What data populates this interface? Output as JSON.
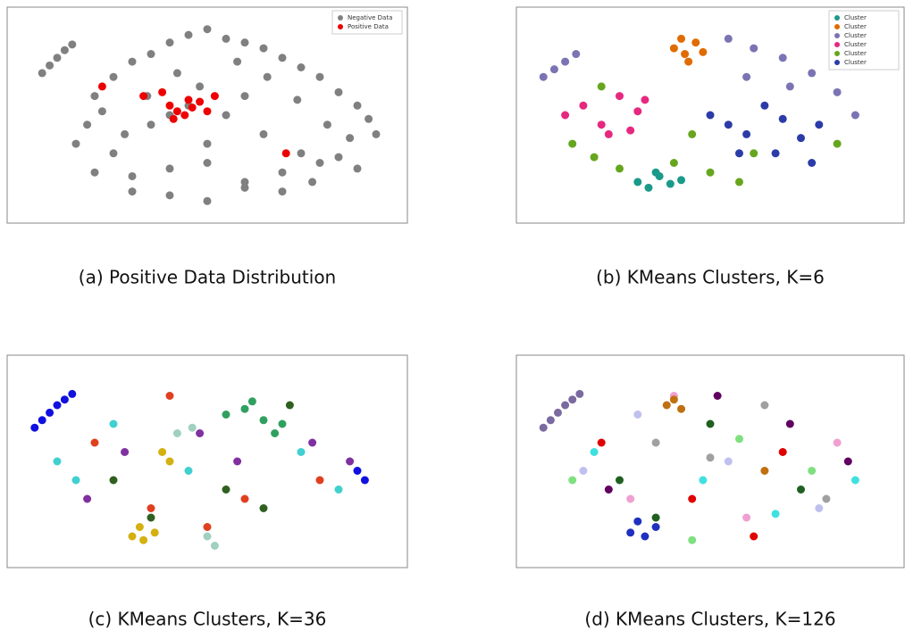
{
  "chart_data": [
    {
      "type": "scatter",
      "title": "(a) Positive Data Distribution",
      "xlim": [
        0,
        100
      ],
      "ylim": [
        0,
        100
      ],
      "legend": "upper right",
      "series": [
        {
          "name": "Negative Data",
          "color": "#808080",
          "x": [
            6,
            8,
            10,
            12,
            14,
            20,
            25,
            30,
            35,
            40,
            45,
            50,
            55,
            60,
            65,
            70,
            75,
            80,
            85,
            90,
            93,
            18,
            22,
            28,
            34,
            42,
            48,
            58,
            66,
            74,
            82,
            88,
            15,
            25,
            35,
            45,
            55,
            65,
            75,
            85,
            95,
            20,
            30,
            40,
            50,
            60,
            70,
            80,
            90,
            30,
            40,
            50,
            60,
            70,
            78,
            40,
            50,
            60
          ],
          "y": [
            72,
            76,
            80,
            84,
            87,
            60,
            70,
            78,
            82,
            88,
            92,
            95,
            90,
            88,
            85,
            80,
            75,
            70,
            62,
            55,
            48,
            45,
            52,
            40,
            60,
            72,
            65,
            78,
            70,
            58,
            45,
            38,
            35,
            30,
            45,
            55,
            50,
            40,
            30,
            28,
            40,
            20,
            18,
            22,
            25,
            15,
            20,
            25,
            22,
            10,
            8,
            5,
            12,
            10,
            15,
            50,
            35,
            60
          ]
        },
        {
          "name": "Positive Data",
          "color": "#ee0000",
          "x": [
            22,
            33,
            38,
            40,
            42,
            44,
            46,
            48,
            50,
            52,
            41,
            45,
            71
          ],
          "y": [
            65,
            60,
            62,
            55,
            52,
            50,
            54,
            57,
            52,
            60,
            48,
            58,
            30
          ]
        }
      ]
    },
    {
      "type": "scatter",
      "title": "(b) KMeans Clusters, K=6",
      "xlim": [
        0,
        100
      ],
      "ylim": [
        0,
        100
      ],
      "legend": "upper right",
      "series": [
        {
          "name": "Cluster",
          "color": "#1a9a8a",
          "x": [
            30,
            33,
            36,
            39,
            42,
            35
          ],
          "y": [
            15,
            12,
            18,
            14,
            16,
            20
          ]
        },
        {
          "name": "Cluster",
          "color": "#e06b00",
          "x": [
            40,
            43,
            46,
            44,
            48,
            42
          ],
          "y": [
            85,
            82,
            88,
            78,
            83,
            90
          ]
        },
        {
          "name": "Cluster",
          "color": "#7a74b4",
          "x": [
            4,
            7,
            10,
            13,
            55,
            62,
            70,
            78,
            85,
            60,
            72,
            90
          ],
          "y": [
            70,
            74,
            78,
            82,
            90,
            85,
            80,
            72,
            62,
            70,
            65,
            50
          ]
        },
        {
          "name": "Cluster",
          "color": "#e6287f",
          "x": [
            10,
            15,
            20,
            25,
            30,
            28,
            22,
            32
          ],
          "y": [
            50,
            55,
            45,
            60,
            52,
            42,
            40,
            58
          ]
        },
        {
          "name": "Cluster",
          "color": "#66a61e",
          "x": [
            12,
            18,
            25,
            40,
            50,
            58,
            62,
            85,
            20,
            45
          ],
          "y": [
            35,
            28,
            22,
            25,
            20,
            15,
            30,
            35,
            65,
            40
          ]
        },
        {
          "name": "Cluster",
          "color": "#2b3ba8",
          "x": [
            50,
            55,
            60,
            65,
            70,
            75,
            80,
            58,
            68,
            78
          ],
          "y": [
            50,
            45,
            40,
            55,
            48,
            38,
            45,
            30,
            30,
            25
          ]
        }
      ]
    },
    {
      "type": "scatter",
      "title": "(c) KMeans Clusters, K=36",
      "xlim": [
        0,
        100
      ],
      "ylim": [
        0,
        100
      ],
      "series": [
        {
          "color": "#1010e0",
          "x": [
            4,
            6,
            8,
            10,
            12,
            14,
            90,
            92
          ],
          "y": [
            68,
            72,
            76,
            80,
            83,
            86,
            45,
            40
          ]
        },
        {
          "color": "#d4b010",
          "x": [
            30,
            33,
            36,
            32,
            40,
            38
          ],
          "y": [
            10,
            8,
            12,
            15,
            50,
            55
          ]
        },
        {
          "color": "#30a060",
          "x": [
            55,
            60,
            65,
            70,
            62,
            68
          ],
          "y": [
            75,
            78,
            72,
            70,
            82,
            65
          ]
        },
        {
          "color": "#e04020",
          "x": [
            20,
            40,
            60,
            80,
            50,
            35
          ],
          "y": [
            60,
            85,
            30,
            40,
            15,
            25
          ]
        },
        {
          "color": "#40d0d0",
          "x": [
            10,
            15,
            25,
            45,
            75,
            85
          ],
          "y": [
            50,
            40,
            70,
            45,
            55,
            35
          ]
        },
        {
          "color": "#8030a0",
          "x": [
            18,
            28,
            48,
            58,
            78,
            88
          ],
          "y": [
            30,
            55,
            65,
            50,
            60,
            50
          ]
        },
        {
          "color": "#a0d0c0",
          "x": [
            42,
            46,
            50,
            52
          ],
          "y": [
            65,
            68,
            10,
            5
          ]
        },
        {
          "color": "#306020",
          "x": [
            25,
            35,
            55,
            65,
            72
          ],
          "y": [
            40,
            20,
            35,
            25,
            80
          ]
        }
      ]
    },
    {
      "type": "scatter",
      "title": "(d) KMeans Clusters, K=126",
      "xlim": [
        0,
        100
      ],
      "ylim": [
        0,
        100
      ],
      "series": [
        {
          "color": "#7a6aa0",
          "x": [
            4,
            6,
            8,
            10,
            12,
            14
          ],
          "y": [
            68,
            72,
            76,
            80,
            83,
            86
          ]
        },
        {
          "color": "#e00000",
          "x": [
            20,
            45,
            70,
            62
          ],
          "y": [
            60,
            30,
            55,
            10
          ]
        },
        {
          "color": "#206020",
          "x": [
            25,
            50,
            75,
            35
          ],
          "y": [
            40,
            70,
            35,
            20
          ]
        },
        {
          "color": "#c0c0f0",
          "x": [
            30,
            55,
            80,
            15
          ],
          "y": [
            75,
            50,
            25,
            45
          ]
        },
        {
          "color": "#f0a0d0",
          "x": [
            40,
            60,
            85,
            28
          ],
          "y": [
            85,
            20,
            60,
            30
          ]
        },
        {
          "color": "#2030c0",
          "x": [
            28,
            32,
            35,
            30
          ],
          "y": [
            12,
            10,
            15,
            18
          ]
        },
        {
          "color": "#c07010",
          "x": [
            38,
            42,
            40,
            65
          ],
          "y": [
            80,
            78,
            83,
            45
          ]
        },
        {
          "color": "#40e0e0",
          "x": [
            18,
            48,
            68,
            90
          ],
          "y": [
            55,
            40,
            22,
            40
          ]
        },
        {
          "color": "#600060",
          "x": [
            22,
            52,
            72,
            88
          ],
          "y": [
            35,
            85,
            70,
            50
          ]
        },
        {
          "color": "#80e080",
          "x": [
            12,
            58,
            78,
            45
          ],
          "y": [
            40,
            62,
            45,
            8
          ]
        },
        {
          "color": "#a0a0a0",
          "x": [
            35,
            65,
            82,
            50
          ],
          "y": [
            60,
            80,
            30,
            52
          ]
        }
      ]
    }
  ]
}
